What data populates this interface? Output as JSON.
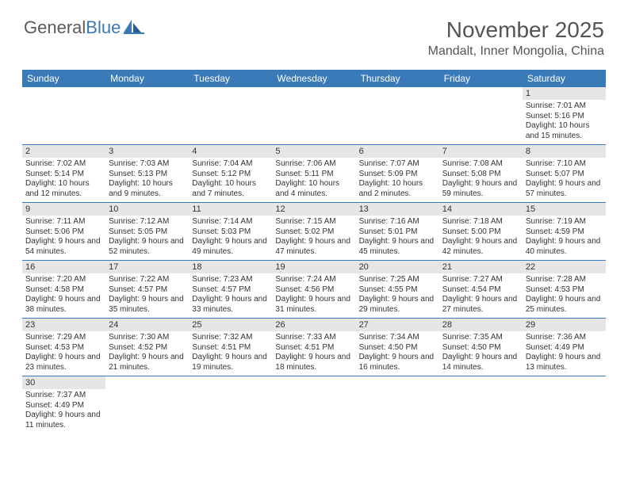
{
  "logo": {
    "text1": "General",
    "text2": "Blue"
  },
  "title": "November 2025",
  "subtitle": "Mandalt, Inner Mongolia, China",
  "colors": {
    "header_bg": "#3b7ab8",
    "header_text": "#ffffff",
    "daynum_bg": "#e6e6e6",
    "border": "#3b7ab8",
    "title_color": "#555555",
    "body_text": "#333333"
  },
  "weekdays": [
    "Sunday",
    "Monday",
    "Tuesday",
    "Wednesday",
    "Thursday",
    "Friday",
    "Saturday"
  ],
  "weeks": [
    [
      null,
      null,
      null,
      null,
      null,
      null,
      {
        "n": "1",
        "sunrise": "7:01 AM",
        "sunset": "5:16 PM",
        "daylight": "10 hours and 15 minutes."
      }
    ],
    [
      {
        "n": "2",
        "sunrise": "7:02 AM",
        "sunset": "5:14 PM",
        "daylight": "10 hours and 12 minutes."
      },
      {
        "n": "3",
        "sunrise": "7:03 AM",
        "sunset": "5:13 PM",
        "daylight": "10 hours and 9 minutes."
      },
      {
        "n": "4",
        "sunrise": "7:04 AM",
        "sunset": "5:12 PM",
        "daylight": "10 hours and 7 minutes."
      },
      {
        "n": "5",
        "sunrise": "7:06 AM",
        "sunset": "5:11 PM",
        "daylight": "10 hours and 4 minutes."
      },
      {
        "n": "6",
        "sunrise": "7:07 AM",
        "sunset": "5:09 PM",
        "daylight": "10 hours and 2 minutes."
      },
      {
        "n": "7",
        "sunrise": "7:08 AM",
        "sunset": "5:08 PM",
        "daylight": "9 hours and 59 minutes."
      },
      {
        "n": "8",
        "sunrise": "7:10 AM",
        "sunset": "5:07 PM",
        "daylight": "9 hours and 57 minutes."
      }
    ],
    [
      {
        "n": "9",
        "sunrise": "7:11 AM",
        "sunset": "5:06 PM",
        "daylight": "9 hours and 54 minutes."
      },
      {
        "n": "10",
        "sunrise": "7:12 AM",
        "sunset": "5:05 PM",
        "daylight": "9 hours and 52 minutes."
      },
      {
        "n": "11",
        "sunrise": "7:14 AM",
        "sunset": "5:03 PM",
        "daylight": "9 hours and 49 minutes."
      },
      {
        "n": "12",
        "sunrise": "7:15 AM",
        "sunset": "5:02 PM",
        "daylight": "9 hours and 47 minutes."
      },
      {
        "n": "13",
        "sunrise": "7:16 AM",
        "sunset": "5:01 PM",
        "daylight": "9 hours and 45 minutes."
      },
      {
        "n": "14",
        "sunrise": "7:18 AM",
        "sunset": "5:00 PM",
        "daylight": "9 hours and 42 minutes."
      },
      {
        "n": "15",
        "sunrise": "7:19 AM",
        "sunset": "4:59 PM",
        "daylight": "9 hours and 40 minutes."
      }
    ],
    [
      {
        "n": "16",
        "sunrise": "7:20 AM",
        "sunset": "4:58 PM",
        "daylight": "9 hours and 38 minutes."
      },
      {
        "n": "17",
        "sunrise": "7:22 AM",
        "sunset": "4:57 PM",
        "daylight": "9 hours and 35 minutes."
      },
      {
        "n": "18",
        "sunrise": "7:23 AM",
        "sunset": "4:57 PM",
        "daylight": "9 hours and 33 minutes."
      },
      {
        "n": "19",
        "sunrise": "7:24 AM",
        "sunset": "4:56 PM",
        "daylight": "9 hours and 31 minutes."
      },
      {
        "n": "20",
        "sunrise": "7:25 AM",
        "sunset": "4:55 PM",
        "daylight": "9 hours and 29 minutes."
      },
      {
        "n": "21",
        "sunrise": "7:27 AM",
        "sunset": "4:54 PM",
        "daylight": "9 hours and 27 minutes."
      },
      {
        "n": "22",
        "sunrise": "7:28 AM",
        "sunset": "4:53 PM",
        "daylight": "9 hours and 25 minutes."
      }
    ],
    [
      {
        "n": "23",
        "sunrise": "7:29 AM",
        "sunset": "4:53 PM",
        "daylight": "9 hours and 23 minutes."
      },
      {
        "n": "24",
        "sunrise": "7:30 AM",
        "sunset": "4:52 PM",
        "daylight": "9 hours and 21 minutes."
      },
      {
        "n": "25",
        "sunrise": "7:32 AM",
        "sunset": "4:51 PM",
        "daylight": "9 hours and 19 minutes."
      },
      {
        "n": "26",
        "sunrise": "7:33 AM",
        "sunset": "4:51 PM",
        "daylight": "9 hours and 18 minutes."
      },
      {
        "n": "27",
        "sunrise": "7:34 AM",
        "sunset": "4:50 PM",
        "daylight": "9 hours and 16 minutes."
      },
      {
        "n": "28",
        "sunrise": "7:35 AM",
        "sunset": "4:50 PM",
        "daylight": "9 hours and 14 minutes."
      },
      {
        "n": "29",
        "sunrise": "7:36 AM",
        "sunset": "4:49 PM",
        "daylight": "9 hours and 13 minutes."
      }
    ],
    [
      {
        "n": "30",
        "sunrise": "7:37 AM",
        "sunset": "4:49 PM",
        "daylight": "9 hours and 11 minutes."
      },
      null,
      null,
      null,
      null,
      null,
      null
    ]
  ],
  "labels": {
    "sunrise": "Sunrise:",
    "sunset": "Sunset:",
    "daylight": "Daylight:"
  }
}
